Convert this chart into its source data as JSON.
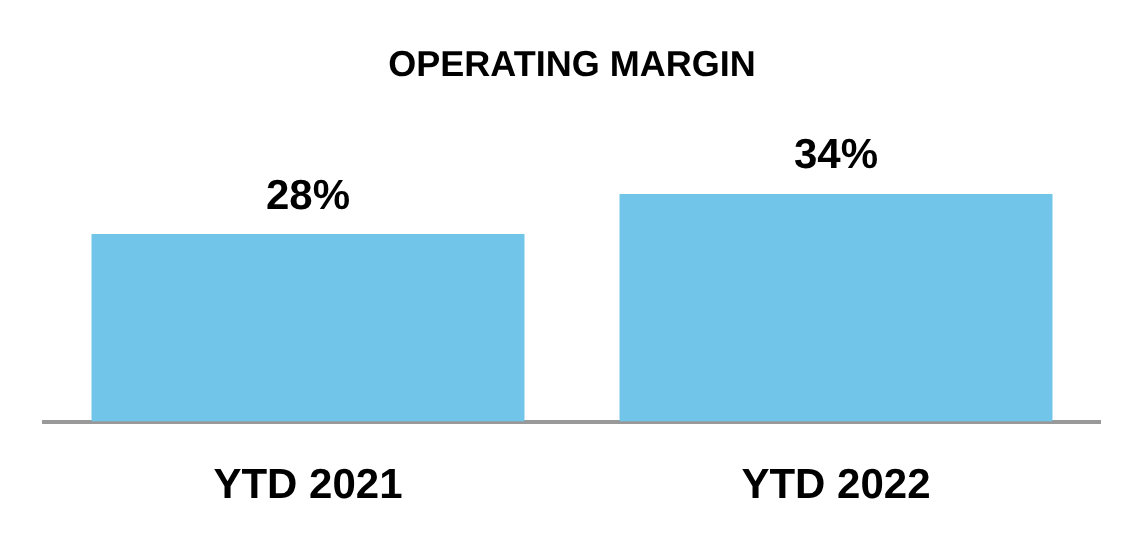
{
  "chart_data": {
    "type": "bar",
    "title": "OPERATING MARGIN",
    "categories": [
      "YTD 2021",
      "YTD 2022"
    ],
    "values": [
      28,
      34
    ],
    "color": "#70c5e8",
    "value_labels": [
      "28%",
      "34%"
    ]
  }
}
